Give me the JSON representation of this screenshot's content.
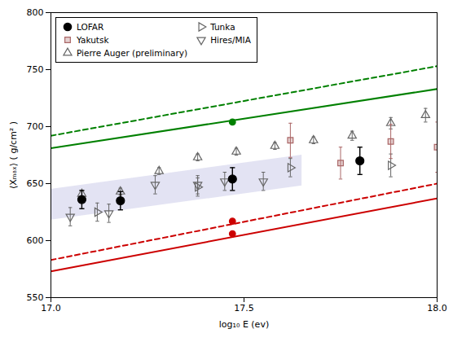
{
  "chart_data": {
    "type": "scatter",
    "xlabel": "log₁₀ E (ev)",
    "ylabel": "⟨Xₘₐₓ⟩ ( g/cm² )",
    "xlim": [
      17.0,
      18.0
    ],
    "ylim": [
      550,
      800
    ],
    "xticks": [
      {
        "value": 17.0,
        "label": "17.0"
      },
      {
        "value": 17.5,
        "label": "17.5"
      },
      {
        "value": 18.0,
        "label": "18.0"
      }
    ],
    "yticks": [
      550,
      600,
      650,
      700,
      750,
      800
    ],
    "grid": false,
    "legend": "upper left",
    "series": [
      {
        "type": "area",
        "color": "#c8c8e8",
        "x": [
          17.0,
          17.65
        ],
        "low": [
          618,
          648
        ],
        "high": [
          645,
          675
        ]
      },
      {
        "type": "line",
        "color": "#008000",
        "line_style": "solid",
        "x": [
          17.0,
          18.0
        ],
        "values": [
          681,
          733
        ]
      },
      {
        "type": "line",
        "color": "#008000",
        "line_style": "dashed",
        "x": [
          17.0,
          18.0
        ],
        "values": [
          692,
          753
        ]
      },
      {
        "type": "line",
        "color": "#cc0000",
        "line_style": "solid",
        "x": [
          17.0,
          18.0
        ],
        "values": [
          573,
          637
        ]
      },
      {
        "type": "line",
        "color": "#cc0000",
        "line_style": "dashed",
        "x": [
          17.0,
          18.0
        ],
        "values": [
          583,
          650
        ]
      },
      {
        "type": "scatter",
        "marker": "circle",
        "color": "#008000",
        "x": [
          17.47
        ],
        "values": [
          704
        ]
      },
      {
        "type": "scatter",
        "marker": "circle",
        "color": "#cc0000",
        "x": [
          17.47
        ],
        "values": [
          617
        ]
      },
      {
        "type": "scatter",
        "marker": "circle",
        "color": "#cc0000",
        "x": [
          17.47
        ],
        "values": [
          606
        ]
      },
      {
        "name": "LOFAR",
        "type": "scatter",
        "marker": "circle",
        "color": "#000000",
        "x": [
          17.08,
          17.18,
          17.47,
          17.8
        ],
        "values": [
          636,
          635,
          654,
          670
        ],
        "yerr": [
          8,
          8,
          10,
          12
        ]
      },
      {
        "name": "Yakutsk",
        "type": "scatter",
        "marker": "square",
        "color": "#aa6666",
        "x": [
          17.62,
          17.75,
          17.88,
          18.0
        ],
        "values": [
          688,
          668,
          687,
          682
        ],
        "yerr": [
          15,
          14,
          15,
          22
        ]
      },
      {
        "name": "Pierre Auger (preliminary)",
        "type": "scatter",
        "marker": "triangle_up_open",
        "color": "#666666",
        "x": [
          17.08,
          17.18,
          17.28,
          17.38,
          17.48,
          17.58,
          17.68,
          17.78,
          17.88,
          17.97
        ],
        "values": [
          641,
          643,
          661,
          673,
          678,
          683,
          688,
          692,
          703,
          710
        ],
        "yerr": [
          3,
          3,
          3,
          3,
          3,
          3,
          3,
          4,
          5,
          6
        ]
      },
      {
        "name": "Tunka",
        "type": "scatter",
        "marker": "triangle_right_open",
        "color": "#666666",
        "x": [
          17.12,
          17.38,
          17.62,
          17.88
        ],
        "values": [
          625,
          647,
          664,
          666
        ],
        "yerr": [
          8,
          8,
          8,
          10
        ]
      },
      {
        "name": "Hires/MIA",
        "type": "scatter",
        "marker": "triangle_down_open",
        "color": "#666666",
        "x": [
          17.05,
          17.15,
          17.27,
          17.38,
          17.45,
          17.55
        ],
        "values": [
          621,
          624,
          649,
          649,
          652,
          652
        ],
        "yerr": [
          8,
          8,
          8,
          8,
          8,
          8
        ]
      }
    ]
  }
}
